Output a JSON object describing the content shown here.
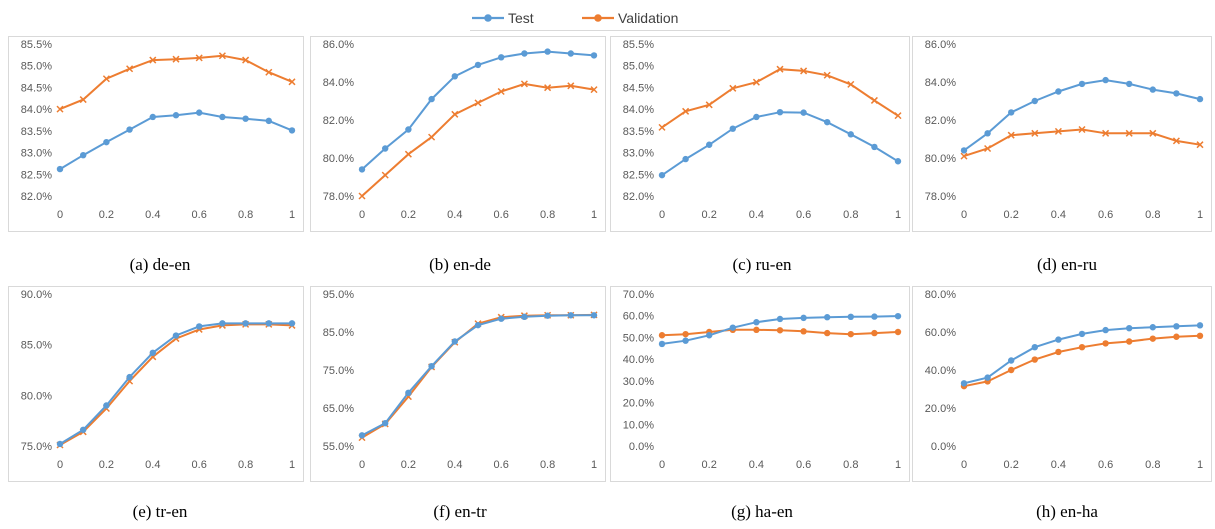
{
  "colors": {
    "test": "#5b9bd5",
    "validation": "#ed7d31",
    "grid": "#d9d9d9",
    "frame": "#d9d9d9"
  },
  "legend": [
    {
      "name": "Test",
      "color": "#5b9bd5",
      "marker": "dot"
    },
    {
      "name": "Validation",
      "color": "#ed7d31",
      "marker": "dot"
    }
  ],
  "chart_data": [
    {
      "type": "line",
      "caption": "(a) de-en",
      "x": [
        0,
        0.1,
        0.2,
        0.3,
        0.4,
        0.5,
        0.6,
        0.7,
        0.8,
        0.9,
        1
      ],
      "xticks": [
        "0",
        "0.2",
        "0.4",
        "0.6",
        "0.8",
        "1"
      ],
      "ylim": [
        82.0,
        85.5
      ],
      "yticks": [
        "82.0%",
        "82.5%",
        "83.0%",
        "83.5%",
        "84.0%",
        "84.5%",
        "85.0%",
        "85.5%"
      ],
      "grid": false,
      "series": [
        {
          "name": "Test",
          "marker": "dot",
          "values": [
            82.62,
            82.94,
            83.24,
            83.53,
            83.82,
            83.86,
            83.92,
            83.82,
            83.78,
            83.73,
            83.51
          ]
        },
        {
          "name": "Validation",
          "marker": "cross",
          "values": [
            84.0,
            84.22,
            84.7,
            84.93,
            85.13,
            85.15,
            85.18,
            85.23,
            85.13,
            84.85,
            84.63
          ]
        }
      ]
    },
    {
      "type": "line",
      "caption": "(b) en-de",
      "x": [
        0,
        0.1,
        0.2,
        0.3,
        0.4,
        0.5,
        0.6,
        0.7,
        0.8,
        0.9,
        1
      ],
      "xticks": [
        "0",
        "0.2",
        "0.4",
        "0.6",
        "0.8",
        "1"
      ],
      "ylim": [
        78.0,
        86.0
      ],
      "yticks": [
        "78.0%",
        "80.0%",
        "82.0%",
        "84.0%",
        "86.0%"
      ],
      "grid": false,
      "series": [
        {
          "name": "Test",
          "marker": "dot",
          "values": [
            79.4,
            80.5,
            81.5,
            83.1,
            84.3,
            84.9,
            85.3,
            85.5,
            85.6,
            85.5,
            85.4
          ]
        },
        {
          "name": "Validation",
          "marker": "cross",
          "values": [
            78.0,
            79.1,
            80.2,
            81.1,
            82.3,
            82.9,
            83.5,
            83.9,
            83.7,
            83.8,
            83.6
          ]
        }
      ]
    },
    {
      "type": "line",
      "caption": "(c) ru-en",
      "x": [
        0,
        0.1,
        0.2,
        0.3,
        0.4,
        0.5,
        0.6,
        0.7,
        0.8,
        0.9,
        1
      ],
      "xticks": [
        "0",
        "0.2",
        "0.4",
        "0.6",
        "0.8",
        "1"
      ],
      "ylim": [
        82.0,
        85.5
      ],
      "yticks": [
        "82.0%",
        "82.5%",
        "83.0%",
        "83.5%",
        "84.0%",
        "84.5%",
        "85.0%",
        "85.5%"
      ],
      "grid": false,
      "series": [
        {
          "name": "Test",
          "marker": "dot",
          "values": [
            82.48,
            82.85,
            83.18,
            83.55,
            83.82,
            83.93,
            83.92,
            83.7,
            83.42,
            83.13,
            82.8
          ]
        },
        {
          "name": "Validation",
          "marker": "cross",
          "values": [
            83.58,
            83.95,
            84.1,
            84.48,
            84.62,
            84.92,
            84.88,
            84.78,
            84.57,
            84.2,
            83.85
          ]
        }
      ]
    },
    {
      "type": "line",
      "caption": "(d) en-ru",
      "x": [
        0,
        0.1,
        0.2,
        0.3,
        0.4,
        0.5,
        0.6,
        0.7,
        0.8,
        0.9,
        1
      ],
      "xticks": [
        "0",
        "0.2",
        "0.4",
        "0.6",
        "0.8",
        "1"
      ],
      "ylim": [
        78.0,
        86.0
      ],
      "yticks": [
        "78.0%",
        "80.0%",
        "82.0%",
        "84.0%",
        "86.0%"
      ],
      "grid": false,
      "series": [
        {
          "name": "Test",
          "marker": "dot",
          "values": [
            80.4,
            81.3,
            82.4,
            83.0,
            83.5,
            83.9,
            84.1,
            83.9,
            83.6,
            83.4,
            83.1
          ]
        },
        {
          "name": "Validation",
          "marker": "cross",
          "values": [
            80.1,
            80.5,
            81.2,
            81.3,
            81.4,
            81.5,
            81.3,
            81.3,
            81.3,
            80.9,
            80.7
          ]
        }
      ]
    },
    {
      "type": "line",
      "caption": "(e) tr-en",
      "x": [
        0,
        0.1,
        0.2,
        0.3,
        0.4,
        0.5,
        0.6,
        0.7,
        0.8,
        0.9,
        1
      ],
      "xticks": [
        "0",
        "0.2",
        "0.4",
        "0.6",
        "0.8",
        "1"
      ],
      "ylim": [
        75.0,
        90.0
      ],
      "yticks": [
        "75.0%",
        "80.0%",
        "85.0%",
        "90.0%"
      ],
      "grid": false,
      "series": [
        {
          "name": "Test",
          "marker": "dot",
          "values": [
            75.2,
            76.6,
            79.0,
            81.8,
            84.2,
            85.9,
            86.8,
            87.1,
            87.1,
            87.1,
            87.1
          ]
        },
        {
          "name": "Validation",
          "marker": "cross",
          "values": [
            75.1,
            76.4,
            78.7,
            81.4,
            83.8,
            85.6,
            86.5,
            86.9,
            87.0,
            87.0,
            86.9
          ]
        }
      ]
    },
    {
      "type": "line",
      "caption": "(f) en-tr",
      "x": [
        0,
        0.1,
        0.2,
        0.3,
        0.4,
        0.5,
        0.6,
        0.7,
        0.8,
        0.9,
        1
      ],
      "xticks": [
        "0",
        "0.2",
        "0.4",
        "0.6",
        "0.8",
        "1"
      ],
      "ylim": [
        55.0,
        95.0
      ],
      "yticks": [
        "55.0%",
        "65.0%",
        "75.0%",
        "85.0%",
        "95.0%"
      ],
      "grid": false,
      "series": [
        {
          "name": "Test",
          "marker": "dot",
          "values": [
            57.8,
            61.0,
            69.0,
            76.0,
            82.5,
            86.8,
            88.5,
            89.0,
            89.3,
            89.4,
            89.4
          ]
        },
        {
          "name": "Validation",
          "marker": "cross",
          "values": [
            57.2,
            60.8,
            68.0,
            75.8,
            82.3,
            87.2,
            88.9,
            89.3,
            89.4,
            89.4,
            89.5
          ]
        }
      ]
    },
    {
      "type": "line",
      "caption": "(g) ha-en",
      "x": [
        0,
        0.1,
        0.2,
        0.3,
        0.4,
        0.5,
        0.6,
        0.7,
        0.8,
        0.9,
        1
      ],
      "xticks": [
        "0",
        "0.2",
        "0.4",
        "0.6",
        "0.8",
        "1"
      ],
      "ylim": [
        0.0,
        70.0
      ],
      "yticks": [
        "0.0%",
        "10.0%",
        "20.0%",
        "30.0%",
        "40.0%",
        "50.0%",
        "60.0%",
        "70.0%"
      ],
      "grid": false,
      "series": [
        {
          "name": "Test",
          "marker": "dot",
          "values": [
            47.0,
            48.5,
            51.0,
            54.5,
            57.0,
            58.5,
            59.0,
            59.3,
            59.5,
            59.6,
            59.8
          ]
        },
        {
          "name": "Validation",
          "marker": "dot",
          "values": [
            51.0,
            51.5,
            52.5,
            53.5,
            53.5,
            53.3,
            52.8,
            52.0,
            51.5,
            52.0,
            52.5
          ]
        }
      ]
    },
    {
      "type": "line",
      "caption": "(h) en-ha",
      "x": [
        0,
        0.1,
        0.2,
        0.3,
        0.4,
        0.5,
        0.6,
        0.7,
        0.8,
        0.9,
        1
      ],
      "xticks": [
        "0",
        "0.2",
        "0.4",
        "0.6",
        "0.8",
        "1"
      ],
      "ylim": [
        0.0,
        80.0
      ],
      "yticks": [
        "0.0%",
        "20.0%",
        "40.0%",
        "60.0%",
        "80.0%"
      ],
      "grid": false,
      "series": [
        {
          "name": "Test",
          "marker": "dot",
          "values": [
            33.0,
            36.0,
            45.0,
            52.0,
            56.0,
            59.0,
            61.0,
            62.0,
            62.5,
            63.0,
            63.5
          ]
        },
        {
          "name": "Validation",
          "marker": "dot",
          "values": [
            31.5,
            34.0,
            40.0,
            45.5,
            49.5,
            52.0,
            54.0,
            55.0,
            56.5,
            57.5,
            58.0
          ]
        }
      ]
    }
  ]
}
